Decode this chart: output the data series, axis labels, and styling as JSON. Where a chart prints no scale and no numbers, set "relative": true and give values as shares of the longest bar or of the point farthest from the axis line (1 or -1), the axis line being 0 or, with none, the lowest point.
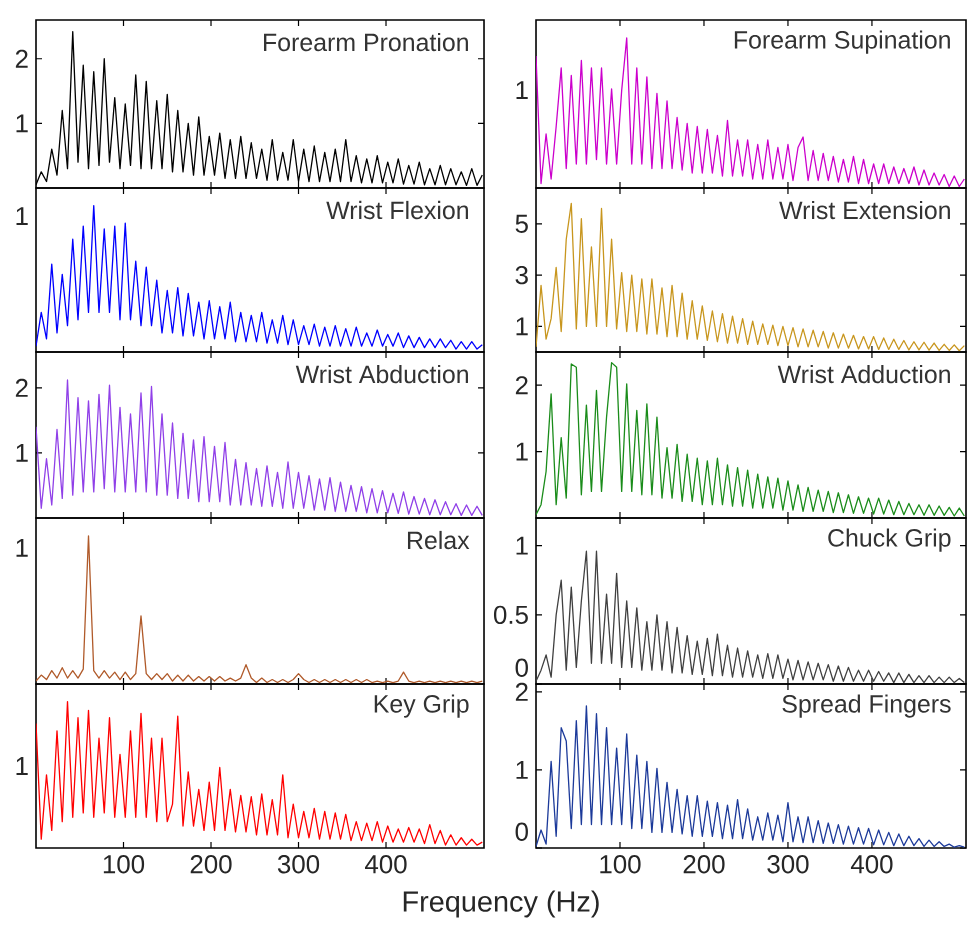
{
  "chart_data": [
    {
      "type": "line",
      "title": "Forearm Pronation",
      "color": "#000000",
      "tick_labels": "y",
      "xlim": [
        0,
        512
      ],
      "xticks": [
        100,
        200,
        300,
        400
      ],
      "ylim": [
        0,
        2.6
      ],
      "yticks": [
        1,
        2
      ],
      "x": [
        0,
        6,
        12,
        18,
        24,
        30,
        36,
        42,
        48,
        54,
        60,
        66,
        72,
        78,
        84,
        90,
        96,
        102,
        108,
        114,
        120,
        126,
        132,
        138,
        144,
        150,
        156,
        162,
        168,
        174,
        180,
        186,
        192,
        198,
        204,
        210,
        216,
        222,
        228,
        234,
        240,
        246,
        252,
        258,
        264,
        270,
        276,
        282,
        288,
        294,
        300,
        306,
        312,
        318,
        324,
        330,
        336,
        342,
        348,
        354,
        360,
        366,
        372,
        378,
        384,
        390,
        396,
        402,
        408,
        414,
        420,
        426,
        432,
        438,
        444,
        450,
        456,
        462,
        468,
        474,
        480,
        486,
        492,
        498,
        504,
        510
      ],
      "values": [
        0.05,
        0.25,
        0.1,
        0.6,
        0.2,
        1.2,
        0.3,
        2.42,
        0.4,
        1.9,
        0.3,
        1.8,
        0.35,
        2.0,
        0.4,
        1.4,
        0.3,
        1.3,
        0.35,
        1.75,
        0.3,
        1.65,
        0.3,
        1.35,
        0.3,
        1.45,
        0.25,
        1.2,
        0.25,
        1.0,
        0.2,
        1.1,
        0.2,
        0.8,
        0.2,
        0.85,
        0.15,
        0.75,
        0.15,
        0.8,
        0.15,
        0.7,
        0.15,
        0.6,
        0.12,
        0.75,
        0.12,
        0.55,
        0.12,
        0.75,
        0.1,
        0.6,
        0.1,
        0.65,
        0.1,
        0.55,
        0.1,
        0.6,
        0.1,
        0.75,
        0.1,
        0.5,
        0.08,
        0.45,
        0.08,
        0.5,
        0.08,
        0.4,
        0.08,
        0.45,
        0.06,
        0.35,
        0.06,
        0.4,
        0.05,
        0.3,
        0.05,
        0.35,
        0.05,
        0.3,
        0.05,
        0.25,
        0.04,
        0.3,
        0.04,
        0.2
      ]
    },
    {
      "type": "line",
      "title": "Forearm Supination",
      "color": "#cc00cc",
      "tick_labels": "y",
      "relative": true,
      "xlim": [
        0,
        512
      ],
      "xticks": [
        100,
        200,
        300,
        400
      ],
      "annotations": [
        "1"
      ],
      "x": [
        0,
        6,
        12,
        18,
        24,
        30,
        36,
        42,
        48,
        54,
        60,
        66,
        72,
        78,
        84,
        90,
        96,
        102,
        108,
        114,
        120,
        126,
        132,
        138,
        144,
        150,
        156,
        162,
        168,
        174,
        180,
        186,
        192,
        198,
        204,
        210,
        216,
        222,
        228,
        234,
        240,
        246,
        252,
        258,
        264,
        270,
        276,
        282,
        288,
        294,
        300,
        306,
        312,
        318,
        324,
        330,
        336,
        342,
        348,
        354,
        360,
        366,
        372,
        378,
        384,
        390,
        396,
        402,
        408,
        414,
        420,
        426,
        432,
        438,
        444,
        450,
        456,
        462,
        468,
        474,
        480,
        486,
        492,
        498,
        504,
        510
      ],
      "values": [
        0.88,
        0.03,
        0.36,
        0.06,
        0.41,
        0.8,
        0.13,
        0.75,
        0.16,
        0.85,
        0.16,
        0.8,
        0.19,
        0.8,
        0.16,
        0.66,
        0.16,
        0.65,
        1,
        0.16,
        0.8,
        0.16,
        0.74,
        0.13,
        0.63,
        0.13,
        0.58,
        0.13,
        0.47,
        0.12,
        0.43,
        0.1,
        0.41,
        0.1,
        0.39,
        0.1,
        0.35,
        0.08,
        0.45,
        0.08,
        0.32,
        0.08,
        0.32,
        0.06,
        0.29,
        0.06,
        0.32,
        0.06,
        0.27,
        0.06,
        0.29,
        0.05,
        0.27,
        0.34,
        0.05,
        0.25,
        0.05,
        0.23,
        0.05,
        0.21,
        0.04,
        0.19,
        0.04,
        0.21,
        0.03,
        0.19,
        0.03,
        0.16,
        0.03,
        0.16,
        0.03,
        0.14,
        0.03,
        0.13,
        0.03,
        0.14,
        0.02,
        0.12,
        0.02,
        0.1,
        0.02,
        0.09,
        0.01,
        0.08,
        0.01,
        0.06
      ]
    },
    {
      "type": "line",
      "title": "Wrist Flexion",
      "color": "#0000ff",
      "tick_labels": "y",
      "relative": true,
      "xlim": [
        0,
        512
      ],
      "xticks": [
        100,
        200,
        300,
        400
      ],
      "annotations": [
        "1"
      ],
      "x": [
        0,
        6,
        12,
        18,
        24,
        30,
        36,
        42,
        48,
        54,
        60,
        66,
        72,
        78,
        84,
        90,
        96,
        102,
        108,
        114,
        120,
        126,
        132,
        138,
        144,
        150,
        156,
        162,
        168,
        174,
        180,
        186,
        192,
        198,
        204,
        210,
        216,
        222,
        228,
        234,
        240,
        246,
        252,
        258,
        264,
        270,
        276,
        282,
        288,
        294,
        300,
        306,
        312,
        318,
        324,
        330,
        336,
        342,
        348,
        354,
        360,
        366,
        372,
        378,
        384,
        390,
        396,
        402,
        408,
        414,
        420,
        426,
        432,
        438,
        444,
        450,
        456,
        462,
        468,
        474,
        480,
        486,
        492,
        498,
        504,
        510
      ],
      "values": [
        0.04,
        0.27,
        0.09,
        0.6,
        0.13,
        0.53,
        0.18,
        0.77,
        0.22,
        0.86,
        0.27,
        1,
        0.27,
        0.84,
        0.27,
        0.86,
        0.22,
        0.88,
        0.22,
        0.62,
        0.18,
        0.58,
        0.18,
        0.49,
        0.13,
        0.42,
        0.13,
        0.44,
        0.11,
        0.4,
        0.11,
        0.34,
        0.09,
        0.35,
        0.09,
        0.31,
        0.09,
        0.34,
        0.07,
        0.27,
        0.07,
        0.25,
        0.07,
        0.27,
        0.06,
        0.22,
        0.06,
        0.25,
        0.05,
        0.22,
        0.05,
        0.18,
        0.05,
        0.19,
        0.04,
        0.17,
        0.04,
        0.18,
        0.04,
        0.16,
        0.04,
        0.17,
        0.04,
        0.13,
        0.04,
        0.15,
        0.04,
        0.12,
        0.04,
        0.13,
        0.03,
        0.11,
        0.03,
        0.1,
        0.03,
        0.09,
        0.03,
        0.09,
        0.03,
        0.08,
        0.02,
        0.07,
        0.02,
        0.07,
        0.02,
        0.05
      ]
    },
    {
      "type": "line",
      "title": "Wrist Extension",
      "color": "#c8961e",
      "tick_labels": "y",
      "xlim": [
        0,
        512
      ],
      "xticks": [
        100,
        200,
        300,
        400
      ],
      "ylim": [
        0,
        6.4
      ],
      "yticks": [
        1,
        3,
        5
      ],
      "x": [
        0,
        6,
        12,
        18,
        24,
        30,
        36,
        42,
        48,
        54,
        60,
        66,
        72,
        78,
        84,
        90,
        96,
        102,
        108,
        114,
        120,
        126,
        132,
        138,
        144,
        150,
        156,
        162,
        168,
        174,
        180,
        186,
        192,
        198,
        204,
        210,
        216,
        222,
        228,
        234,
        240,
        246,
        252,
        258,
        264,
        270,
        276,
        282,
        288,
        294,
        300,
        306,
        312,
        318,
        324,
        330,
        336,
        342,
        348,
        354,
        360,
        366,
        372,
        378,
        384,
        390,
        396,
        402,
        408,
        414,
        420,
        426,
        432,
        438,
        444,
        450,
        456,
        462,
        468,
        474,
        480,
        486,
        492,
        498,
        504,
        510
      ],
      "values": [
        0.2,
        2.6,
        0.5,
        1.3,
        3.3,
        0.8,
        4.4,
        5.8,
        0.9,
        5.2,
        1.0,
        4.1,
        1.0,
        5.6,
        1.0,
        4.4,
        0.9,
        3.1,
        0.8,
        3.0,
        0.8,
        2.85,
        0.7,
        2.85,
        0.7,
        2.5,
        0.6,
        2.6,
        0.6,
        2.3,
        0.5,
        2.0,
        0.5,
        1.8,
        0.45,
        1.6,
        0.4,
        1.5,
        0.35,
        1.4,
        0.35,
        1.3,
        0.3,
        1.2,
        0.3,
        1.1,
        0.3,
        1.05,
        0.25,
        1.0,
        0.25,
        0.95,
        0.2,
        0.9,
        0.2,
        0.85,
        0.2,
        0.8,
        0.15,
        0.75,
        0.15,
        0.7,
        0.15,
        0.65,
        0.12,
        0.6,
        0.12,
        0.6,
        0.1,
        0.55,
        0.1,
        0.5,
        0.1,
        0.45,
        0.08,
        0.4,
        0.08,
        0.38,
        0.07,
        0.35,
        0.06,
        0.3,
        0.06,
        0.28,
        0.05,
        0.25
      ]
    },
    {
      "type": "line",
      "title": "Wrist Abduction",
      "color": "#9040e8",
      "tick_labels": "y",
      "xlim": [
        0,
        512
      ],
      "xticks": [
        100,
        200,
        300,
        400
      ],
      "ylim": [
        0,
        2.55
      ],
      "yticks": [
        1,
        2
      ],
      "x": [
        0,
        6,
        12,
        18,
        24,
        30,
        36,
        42,
        48,
        54,
        60,
        66,
        72,
        78,
        84,
        90,
        96,
        102,
        108,
        114,
        120,
        126,
        132,
        138,
        144,
        150,
        156,
        162,
        168,
        174,
        180,
        186,
        192,
        198,
        204,
        210,
        216,
        222,
        228,
        234,
        240,
        246,
        252,
        258,
        264,
        270,
        276,
        282,
        288,
        294,
        300,
        306,
        312,
        318,
        324,
        330,
        336,
        342,
        348,
        354,
        360,
        366,
        372,
        378,
        384,
        390,
        396,
        402,
        408,
        414,
        420,
        426,
        432,
        438,
        444,
        450,
        456,
        462,
        468,
        474,
        480,
        486,
        492,
        498,
        504,
        510
      ],
      "values": [
        1.4,
        0.15,
        0.91,
        0.2,
        1.36,
        0.3,
        2.12,
        0.35,
        1.85,
        0.4,
        1.8,
        0.4,
        1.9,
        0.45,
        2.04,
        0.4,
        1.7,
        0.4,
        1.6,
        0.4,
        1.92,
        0.4,
        2.02,
        0.35,
        1.6,
        0.35,
        1.46,
        0.3,
        1.3,
        0.3,
        1.2,
        0.25,
        1.25,
        0.25,
        1.1,
        0.25,
        1.16,
        0.2,
        0.9,
        0.2,
        0.85,
        0.2,
        0.76,
        0.18,
        0.8,
        0.18,
        0.7,
        0.15,
        0.86,
        0.15,
        0.7,
        0.15,
        0.65,
        0.12,
        0.6,
        0.12,
        0.62,
        0.1,
        0.55,
        0.1,
        0.5,
        0.1,
        0.48,
        0.08,
        0.45,
        0.08,
        0.42,
        0.08,
        0.38,
        0.07,
        0.4,
        0.06,
        0.33,
        0.06,
        0.3,
        0.05,
        0.28,
        0.05,
        0.25,
        0.05,
        0.22,
        0.04,
        0.2,
        0.04,
        0.18,
        0.04
      ]
    },
    {
      "type": "line",
      "title": "Wrist Adduction",
      "color": "#1a8c1a",
      "tick_labels": "y",
      "xlim": [
        0,
        512
      ],
      "xticks": [
        100,
        200,
        300,
        400
      ],
      "ylim": [
        0,
        2.5
      ],
      "yticks": [
        1,
        2
      ],
      "x": [
        0,
        6,
        12,
        18,
        24,
        30,
        36,
        42,
        48,
        54,
        60,
        66,
        72,
        78,
        84,
        90,
        96,
        102,
        108,
        114,
        120,
        126,
        132,
        138,
        144,
        150,
        156,
        162,
        168,
        174,
        180,
        186,
        192,
        198,
        204,
        210,
        216,
        222,
        228,
        234,
        240,
        246,
        252,
        258,
        264,
        270,
        276,
        282,
        288,
        294,
        300,
        306,
        312,
        318,
        324,
        330,
        336,
        342,
        348,
        354,
        360,
        366,
        372,
        378,
        384,
        390,
        396,
        402,
        408,
        414,
        420,
        426,
        432,
        438,
        444,
        450,
        456,
        462,
        468,
        474,
        480,
        486,
        492,
        498,
        504,
        510
      ],
      "values": [
        0.05,
        0.2,
        0.7,
        1.87,
        0.2,
        1.21,
        0.3,
        2.32,
        2.27,
        0.35,
        1.7,
        0.4,
        1.92,
        0.4,
        1.52,
        2.34,
        2.27,
        0.4,
        2.02,
        0.4,
        1.62,
        0.35,
        1.72,
        0.35,
        1.52,
        0.3,
        1.06,
        0.3,
        1.11,
        0.25,
        0.96,
        0.25,
        0.9,
        0.2,
        0.86,
        0.2,
        0.9,
        0.2,
        0.8,
        0.18,
        0.76,
        0.18,
        0.72,
        0.15,
        0.66,
        0.15,
        0.62,
        0.15,
        0.6,
        0.12,
        0.56,
        0.12,
        0.5,
        0.1,
        0.46,
        0.1,
        0.42,
        0.1,
        0.4,
        0.08,
        0.38,
        0.08,
        0.35,
        0.07,
        0.32,
        0.07,
        0.3,
        0.06,
        0.3,
        0.06,
        0.27,
        0.05,
        0.25,
        0.05,
        0.22,
        0.05,
        0.2,
        0.04,
        0.2,
        0.04,
        0.18,
        0.04,
        0.16,
        0.03,
        0.15,
        0.03
      ]
    },
    {
      "type": "line",
      "title": "Relax",
      "color": "#b05a2a",
      "tick_labels": "y",
      "relative": true,
      "xlim": [
        0,
        512
      ],
      "xticks": [
        100,
        200,
        300,
        400
      ],
      "annotations": [
        "1"
      ],
      "x": [
        0,
        6,
        12,
        18,
        24,
        30,
        36,
        42,
        48,
        54,
        60,
        66,
        72,
        78,
        84,
        90,
        96,
        102,
        108,
        114,
        120,
        126,
        132,
        138,
        144,
        150,
        156,
        162,
        168,
        174,
        180,
        186,
        192,
        198,
        204,
        210,
        216,
        222,
        228,
        234,
        240,
        246,
        252,
        258,
        264,
        270,
        276,
        282,
        288,
        294,
        300,
        306,
        312,
        318,
        324,
        330,
        336,
        342,
        348,
        354,
        360,
        366,
        372,
        378,
        384,
        390,
        396,
        402,
        408,
        414,
        420,
        426,
        432,
        438,
        444,
        450,
        456,
        462,
        468,
        474,
        480,
        486,
        492,
        498,
        504,
        510
      ],
      "values": [
        0.02,
        0.06,
        0.03,
        0.09,
        0.04,
        0.11,
        0.04,
        0.09,
        0.04,
        0.1,
        1,
        0.09,
        0.04,
        0.09,
        0.04,
        0.08,
        0.03,
        0.08,
        0.03,
        0.07,
        0.46,
        0.07,
        0.03,
        0.07,
        0.03,
        0.07,
        0.02,
        0.06,
        0.02,
        0.06,
        0.02,
        0.05,
        0.02,
        0.05,
        0.02,
        0.05,
        0.02,
        0.04,
        0.02,
        0.04,
        0.13,
        0.04,
        0.01,
        0.04,
        0.01,
        0.03,
        0.01,
        0.03,
        0.01,
        0.03,
        0.07,
        0.03,
        0.01,
        0.03,
        0.01,
        0.03,
        0.01,
        0.03,
        0.01,
        0.03,
        0.01,
        0.03,
        0.01,
        0.03,
        0.01,
        0.02,
        0.01,
        0.02,
        0.01,
        0.02,
        0.08,
        0.02,
        0.01,
        0.02,
        0.01,
        0.02,
        0.01,
        0.02,
        0.01,
        0.02,
        0.01,
        0.02,
        0.01,
        0.02,
        0.01,
        0.02
      ]
    },
    {
      "type": "line",
      "title": "Chuck Grip",
      "color": "#404040",
      "tick_labels": "y",
      "xlim": [
        0,
        512
      ],
      "xticks": [
        100,
        200,
        300,
        400
      ],
      "ylim": [
        0,
        1.2
      ],
      "yticks": [
        0,
        0.5,
        1
      ],
      "x": [
        0,
        6,
        12,
        18,
        24,
        30,
        36,
        42,
        48,
        54,
        60,
        66,
        72,
        78,
        84,
        90,
        96,
        102,
        108,
        114,
        120,
        126,
        132,
        138,
        144,
        150,
        156,
        162,
        168,
        174,
        180,
        186,
        192,
        198,
        204,
        210,
        216,
        222,
        228,
        234,
        240,
        246,
        252,
        258,
        264,
        270,
        276,
        282,
        288,
        294,
        300,
        306,
        312,
        318,
        324,
        330,
        336,
        342,
        348,
        354,
        360,
        366,
        372,
        378,
        384,
        390,
        396,
        402,
        408,
        414,
        420,
        426,
        432,
        438,
        444,
        450,
        456,
        462,
        468,
        474,
        480,
        486,
        492,
        498,
        504,
        510
      ],
      "values": [
        0.02,
        0.1,
        0.21,
        0.05,
        0.5,
        0.75,
        0.1,
        0.7,
        0.12,
        0.6,
        0.96,
        0.15,
        0.96,
        0.15,
        0.65,
        0.15,
        0.8,
        0.12,
        0.6,
        0.12,
        0.55,
        0.1,
        0.45,
        0.1,
        0.5,
        0.1,
        0.45,
        0.08,
        0.41,
        0.08,
        0.35,
        0.07,
        0.31,
        0.07,
        0.33,
        0.06,
        0.36,
        0.06,
        0.28,
        0.05,
        0.26,
        0.05,
        0.24,
        0.05,
        0.21,
        0.04,
        0.22,
        0.04,
        0.21,
        0.04,
        0.18,
        0.03,
        0.17,
        0.03,
        0.16,
        0.03,
        0.15,
        0.03,
        0.14,
        0.02,
        0.13,
        0.02,
        0.12,
        0.02,
        0.1,
        0.02,
        0.1,
        0.02,
        0.09,
        0.02,
        0.08,
        0.01,
        0.08,
        0.01,
        0.07,
        0.01,
        0.06,
        0.01,
        0.06,
        0.01,
        0.05,
        0.01,
        0.05,
        0.01,
        0.04,
        0.01
      ]
    },
    {
      "type": "line",
      "title": "Key Grip",
      "color": "#ff0000",
      "xlabel": "Frequency (Hz)",
      "relative": true,
      "xlim": [
        0,
        512
      ],
      "xticks": [
        100,
        200,
        300,
        400
      ],
      "annotations": [
        "1"
      ],
      "x": [
        0,
        6,
        12,
        18,
        24,
        30,
        36,
        42,
        48,
        54,
        60,
        66,
        72,
        78,
        84,
        90,
        96,
        102,
        108,
        114,
        120,
        126,
        132,
        138,
        144,
        150,
        156,
        162,
        168,
        174,
        180,
        186,
        192,
        198,
        204,
        210,
        216,
        222,
        228,
        234,
        240,
        246,
        252,
        258,
        264,
        270,
        276,
        282,
        288,
        294,
        300,
        306,
        312,
        318,
        324,
        330,
        336,
        342,
        348,
        354,
        360,
        366,
        372,
        378,
        384,
        390,
        396,
        402,
        408,
        414,
        420,
        426,
        432,
        438,
        444,
        450,
        456,
        462,
        468,
        474,
        480,
        486,
        492,
        498,
        504,
        510
      ],
      "values": [
        0.85,
        0.06,
        0.5,
        0.12,
        0.8,
        0.18,
        1,
        0.21,
        0.89,
        0.24,
        0.94,
        0.21,
        0.75,
        0.24,
        0.89,
        0.21,
        0.64,
        0.21,
        0.8,
        0.21,
        0.92,
        0.21,
        0.75,
        0.18,
        0.75,
        0.18,
        0.3,
        0.9,
        0.15,
        0.52,
        0.15,
        0.4,
        0.12,
        0.45,
        0.12,
        0.55,
        0.12,
        0.4,
        0.11,
        0.36,
        0.11,
        0.35,
        0.09,
        0.37,
        0.09,
        0.33,
        0.09,
        0.5,
        0.07,
        0.3,
        0.07,
        0.25,
        0.07,
        0.27,
        0.06,
        0.25,
        0.06,
        0.24,
        0.06,
        0.23,
        0.05,
        0.18,
        0.05,
        0.17,
        0.05,
        0.18,
        0.04,
        0.15,
        0.04,
        0.13,
        0.04,
        0.14,
        0.04,
        0.13,
        0.03,
        0.16,
        0.03,
        0.12,
        0.02,
        0.09,
        0.02,
        0.07,
        0.02,
        0.06,
        0.02,
        0.04
      ]
    },
    {
      "type": "line",
      "title": "Spread Fingers",
      "color": "#1c3a9a",
      "xlim": [
        0,
        512
      ],
      "xticks": [
        100,
        200,
        300,
        400
      ],
      "ylim": [
        0,
        2.1
      ],
      "yticks": [
        0,
        1,
        2
      ],
      "x": [
        0,
        6,
        12,
        18,
        24,
        30,
        36,
        42,
        48,
        54,
        60,
        66,
        72,
        78,
        84,
        90,
        96,
        102,
        108,
        114,
        120,
        126,
        132,
        138,
        144,
        150,
        156,
        162,
        168,
        174,
        180,
        186,
        192,
        198,
        204,
        210,
        216,
        222,
        228,
        234,
        240,
        246,
        252,
        258,
        264,
        270,
        276,
        282,
        288,
        294,
        300,
        306,
        312,
        318,
        324,
        330,
        336,
        342,
        348,
        354,
        360,
        366,
        372,
        378,
        384,
        390,
        396,
        402,
        408,
        414,
        420,
        426,
        432,
        438,
        444,
        450,
        456,
        462,
        468,
        474,
        480,
        486,
        492,
        498,
        504,
        510
      ],
      "values": [
        0.02,
        0.23,
        0.05,
        1.11,
        0.15,
        1.54,
        1.37,
        0.25,
        1.63,
        0.3,
        1.82,
        0.3,
        1.72,
        0.3,
        1.54,
        0.3,
        1.28,
        0.3,
        1.46,
        0.25,
        1.19,
        0.25,
        1.11,
        0.2,
        1.02,
        0.2,
        0.84,
        0.2,
        0.75,
        0.18,
        0.67,
        0.15,
        0.67,
        0.15,
        0.6,
        0.15,
        0.58,
        0.12,
        0.55,
        0.12,
        0.62,
        0.12,
        0.5,
        0.1,
        0.4,
        0.1,
        0.45,
        0.1,
        0.42,
        0.08,
        0.58,
        0.08,
        0.4,
        0.07,
        0.4,
        0.07,
        0.35,
        0.06,
        0.32,
        0.06,
        0.3,
        0.05,
        0.28,
        0.05,
        0.26,
        0.05,
        0.25,
        0.04,
        0.23,
        0.04,
        0.2,
        0.03,
        0.18,
        0.03,
        0.15,
        0.03,
        0.12,
        0.02,
        0.1,
        0.02,
        0.08,
        0.02,
        0.05,
        0.01,
        0.03,
        0.01
      ]
    }
  ]
}
